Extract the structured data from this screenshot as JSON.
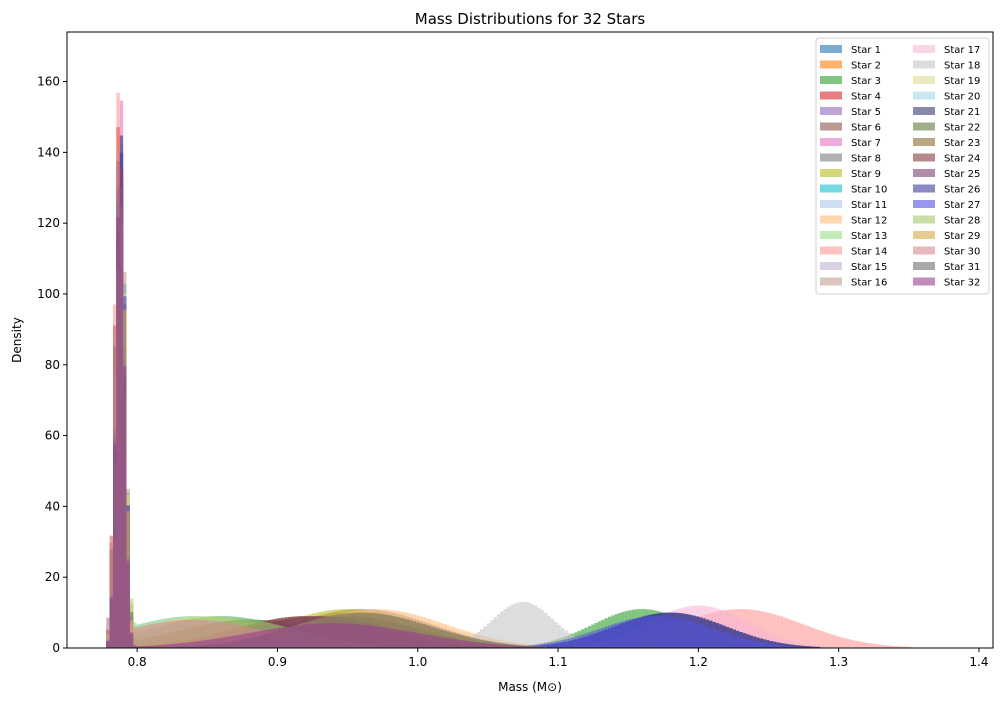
{
  "chart_data": {
    "type": "histogram",
    "title": "Mass Distributions for 32 Stars",
    "xlabel": "Mass (M⊙)",
    "ylabel": "Density",
    "xlim": [
      0.75,
      1.41
    ],
    "ylim": [
      0,
      174
    ],
    "x_ticks": [
      0.8,
      0.9,
      1.0,
      1.1,
      1.2,
      1.3,
      1.4
    ],
    "x_tick_labels": [
      "0.8",
      "0.9",
      "1.0",
      "1.1",
      "1.2",
      "1.3",
      "1.4"
    ],
    "y_ticks": [
      0,
      20,
      40,
      60,
      80,
      100,
      120,
      140,
      160
    ],
    "y_tick_labels": [
      "0",
      "20",
      "40",
      "60",
      "80",
      "100",
      "120",
      "140",
      "160"
    ],
    "grid": false,
    "legend_position": "top-right",
    "legend_columns": 2,
    "series": [
      {
        "name": "Star 1",
        "color": "#1f77b4",
        "peaks": [
          {
            "mu": 0.788,
            "sigma": 0.003,
            "height": 145
          },
          {
            "mu": 0.88,
            "sigma": 0.06,
            "height": 8
          }
        ]
      },
      {
        "name": "Star 2",
        "color": "#ff7f0e",
        "peaks": [
          {
            "mu": 0.787,
            "sigma": 0.003,
            "height": 150
          },
          {
            "mu": 0.95,
            "sigma": 0.05,
            "height": 10
          }
        ]
      },
      {
        "name": "Star 3",
        "color": "#2ca02c",
        "peaks": [
          {
            "mu": 0.789,
            "sigma": 0.003,
            "height": 130
          },
          {
            "mu": 1.16,
            "sigma": 0.035,
            "height": 11
          }
        ]
      },
      {
        "name": "Star 4",
        "color": "#d62728",
        "peaks": [
          {
            "mu": 0.787,
            "sigma": 0.003,
            "height": 150
          },
          {
            "mu": 0.93,
            "sigma": 0.05,
            "height": 9
          }
        ]
      },
      {
        "name": "Star 5",
        "color": "#9467bd",
        "peaks": [
          {
            "mu": 0.788,
            "sigma": 0.003,
            "height": 135
          },
          {
            "mu": 1.18,
            "sigma": 0.04,
            "height": 10
          }
        ]
      },
      {
        "name": "Star 6",
        "color": "#8c564b",
        "peaks": [
          {
            "mu": 0.787,
            "sigma": 0.003,
            "height": 140
          },
          {
            "mu": 0.92,
            "sigma": 0.05,
            "height": 9
          }
        ]
      },
      {
        "name": "Star 7",
        "color": "#e377c2",
        "peaks": [
          {
            "mu": 0.788,
            "sigma": 0.003,
            "height": 160
          },
          {
            "mu": 0.95,
            "sigma": 0.06,
            "height": 8
          }
        ]
      },
      {
        "name": "Star 8",
        "color": "#7f7f7f",
        "peaks": [
          {
            "mu": 0.789,
            "sigma": 0.003,
            "height": 130
          },
          {
            "mu": 0.96,
            "sigma": 0.05,
            "height": 11
          }
        ]
      },
      {
        "name": "Star 9",
        "color": "#bcbd22",
        "peaks": [
          {
            "mu": 0.788,
            "sigma": 0.003,
            "height": 125
          },
          {
            "mu": 0.95,
            "sigma": 0.05,
            "height": 11
          }
        ]
      },
      {
        "name": "Star 10",
        "color": "#17becf",
        "peaks": [
          {
            "mu": 0.789,
            "sigma": 0.003,
            "height": 130
          },
          {
            "mu": 0.86,
            "sigma": 0.05,
            "height": 9
          }
        ]
      },
      {
        "name": "Star 11",
        "color": "#aec7e8",
        "peaks": [
          {
            "mu": 0.787,
            "sigma": 0.003,
            "height": 120
          },
          {
            "mu": 0.84,
            "sigma": 0.05,
            "height": 9
          }
        ]
      },
      {
        "name": "Star 12",
        "color": "#ffbb78",
        "peaks": [
          {
            "mu": 0.788,
            "sigma": 0.003,
            "height": 140
          },
          {
            "mu": 0.97,
            "sigma": 0.05,
            "height": 11
          }
        ]
      },
      {
        "name": "Star 13",
        "color": "#98df8a",
        "peaks": [
          {
            "mu": 0.789,
            "sigma": 0.003,
            "height": 120
          },
          {
            "mu": 0.84,
            "sigma": 0.05,
            "height": 9
          }
        ]
      },
      {
        "name": "Star 14",
        "color": "#ff9896",
        "peaks": [
          {
            "mu": 0.787,
            "sigma": 0.003,
            "height": 160
          },
          {
            "mu": 1.23,
            "sigma": 0.045,
            "height": 11
          }
        ]
      },
      {
        "name": "Star 15",
        "color": "#c5b0d5",
        "peaks": [
          {
            "mu": 0.788,
            "sigma": 0.003,
            "height": 130
          },
          {
            "mu": 0.85,
            "sigma": 0.05,
            "height": 8
          }
        ]
      },
      {
        "name": "Star 16",
        "color": "#c49c94",
        "peaks": [
          {
            "mu": 0.789,
            "sigma": 0.003,
            "height": 135
          },
          {
            "mu": 0.86,
            "sigma": 0.05,
            "height": 8
          }
        ]
      },
      {
        "name": "Star 17",
        "color": "#f7b6d2",
        "peaks": [
          {
            "mu": 0.788,
            "sigma": 0.003,
            "height": 150
          },
          {
            "mu": 1.2,
            "sigma": 0.035,
            "height": 12
          }
        ]
      },
      {
        "name": "Star 18",
        "color": "#c7c7c7",
        "peaks": [
          {
            "mu": 0.788,
            "sigma": 0.003,
            "height": 140
          },
          {
            "mu": 1.075,
            "sigma": 0.022,
            "height": 13
          }
        ]
      },
      {
        "name": "Star 19",
        "color": "#dbdb8d",
        "peaks": [
          {
            "mu": 0.789,
            "sigma": 0.003,
            "height": 125
          },
          {
            "mu": 0.85,
            "sigma": 0.05,
            "height": 9
          }
        ]
      },
      {
        "name": "Star 20",
        "color": "#9edae5",
        "peaks": [
          {
            "mu": 0.788,
            "sigma": 0.003,
            "height": 120
          },
          {
            "mu": 0.85,
            "sigma": 0.05,
            "height": 8
          }
        ]
      },
      {
        "name": "Star 21",
        "color": "#393b79",
        "peaks": [
          {
            "mu": 0.788,
            "sigma": 0.003,
            "height": 150
          },
          {
            "mu": 1.18,
            "sigma": 0.04,
            "height": 10
          }
        ]
      },
      {
        "name": "Star 22",
        "color": "#637939",
        "peaks": [
          {
            "mu": 0.789,
            "sigma": 0.003,
            "height": 125
          },
          {
            "mu": 0.88,
            "sigma": 0.05,
            "height": 8
          }
        ]
      },
      {
        "name": "Star 23",
        "color": "#8c6d31",
        "peaks": [
          {
            "mu": 0.788,
            "sigma": 0.003,
            "height": 130
          },
          {
            "mu": 0.95,
            "sigma": 0.05,
            "height": 9
          }
        ]
      },
      {
        "name": "Star 24",
        "color": "#843c39",
        "peaks": [
          {
            "mu": 0.787,
            "sigma": 0.003,
            "height": 140
          },
          {
            "mu": 0.92,
            "sigma": 0.05,
            "height": 9
          }
        ]
      },
      {
        "name": "Star 25",
        "color": "#7b4173",
        "peaks": [
          {
            "mu": 0.788,
            "sigma": 0.003,
            "height": 140
          },
          {
            "mu": 0.93,
            "sigma": 0.05,
            "height": 9
          }
        ]
      },
      {
        "name": "Star 26",
        "color": "#3b3e9a",
        "peaks": [
          {
            "mu": 0.788,
            "sigma": 0.003,
            "height": 145
          },
          {
            "mu": 1.18,
            "sigma": 0.04,
            "height": 10
          }
        ]
      },
      {
        "name": "Star 27",
        "color": "#5254e0",
        "peaks": [
          {
            "mu": 0.789,
            "sigma": 0.003,
            "height": 130
          },
          {
            "mu": 1.17,
            "sigma": 0.04,
            "height": 9
          }
        ]
      },
      {
        "name": "Star 28",
        "color": "#a4c96a",
        "peaks": [
          {
            "mu": 0.788,
            "sigma": 0.003,
            "height": 120
          },
          {
            "mu": 0.86,
            "sigma": 0.05,
            "height": 9
          }
        ]
      },
      {
        "name": "Star 29",
        "color": "#d6a94a",
        "peaks": [
          {
            "mu": 0.789,
            "sigma": 0.003,
            "height": 125
          },
          {
            "mu": 0.96,
            "sigma": 0.05,
            "height": 10
          }
        ]
      },
      {
        "name": "Star 30",
        "color": "#d98a8f",
        "peaks": [
          {
            "mu": 0.787,
            "sigma": 0.003,
            "height": 140
          },
          {
            "mu": 0.84,
            "sigma": 0.05,
            "height": 8
          }
        ]
      },
      {
        "name": "Star 31",
        "color": "#6f6f6f",
        "peaks": [
          {
            "mu": 0.788,
            "sigma": 0.003,
            "height": 135
          },
          {
            "mu": 0.96,
            "sigma": 0.05,
            "height": 10
          }
        ]
      },
      {
        "name": "Star 32",
        "color": "#973f8d",
        "peaks": [
          {
            "mu": 0.788,
            "sigma": 0.003,
            "height": 140
          },
          {
            "mu": 0.94,
            "sigma": 0.06,
            "height": 7
          }
        ]
      }
    ]
  }
}
